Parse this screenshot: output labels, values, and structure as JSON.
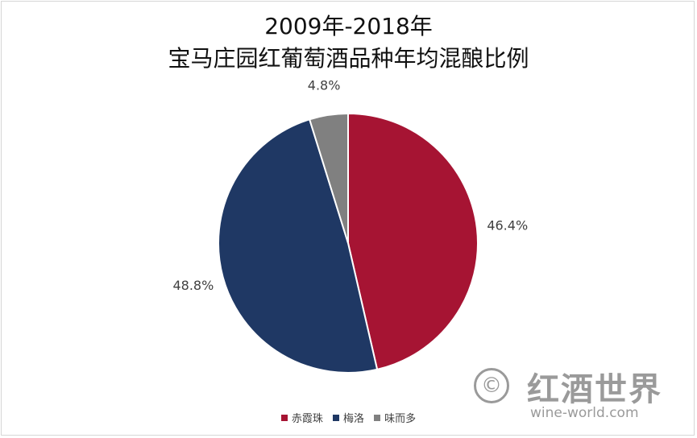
{
  "chart_data": {
    "type": "pie",
    "title": "2009年-2018年",
    "subtitle": "宝马庄园红葡萄酒品种年均混酿比例",
    "categories": [
      "赤霞珠",
      "梅洛",
      "味而多"
    ],
    "values": [
      46.4,
      48.8,
      4.8
    ],
    "labels": [
      "46.4%",
      "48.8%",
      "4.8%"
    ],
    "colors": [
      "#A61433",
      "#1F3864",
      "#808080"
    ],
    "start": "12 o'clock",
    "direction": "clockwise",
    "legend": "bottom"
  },
  "watermark": {
    "copyright": "©",
    "logo": "红酒世界",
    "url": "wine-world.com"
  }
}
